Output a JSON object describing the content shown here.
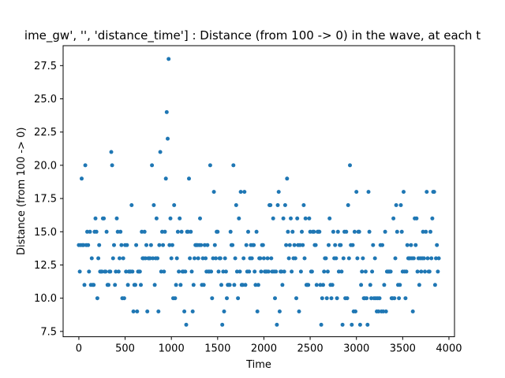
{
  "chart_data": {
    "type": "scatter",
    "title": "ime_gw', '', 'distance_time'] : Distance (from 100 -> 0) in the wave, at each t",
    "xlabel": "Time",
    "ylabel": "Distance (from 100 -> 0)",
    "xlim": [
      -170,
      4060
    ],
    "ylim": [
      7.1,
      29.0
    ],
    "xticks": [
      0,
      500,
      1000,
      1500,
      2000,
      2500,
      3000,
      3500,
      4000
    ],
    "yticks": [
      7.5,
      10.0,
      12.5,
      15.0,
      17.5,
      20.0,
      22.5,
      25.0,
      27.5
    ],
    "xtick_labels": [
      "0",
      "500",
      "1000",
      "1500",
      "2000",
      "2500",
      "3000",
      "3500",
      "4000"
    ],
    "ytick_labels": [
      "7.5",
      "10.0",
      "12.5",
      "15.0",
      "17.5",
      "20.0",
      "22.5",
      "25.0",
      "27.5"
    ],
    "grid": false,
    "legend": "none",
    "color": "#1f77b4",
    "x_max_value": 3890,
    "y_value_levels": [
      8,
      9,
      10,
      11,
      12,
      13,
      14,
      15,
      16,
      17,
      18,
      19,
      20,
      21,
      22,
      23,
      24,
      25,
      27,
      28
    ],
    "x_sample_step": 10,
    "x_start": 0,
    "y_values": []
  }
}
